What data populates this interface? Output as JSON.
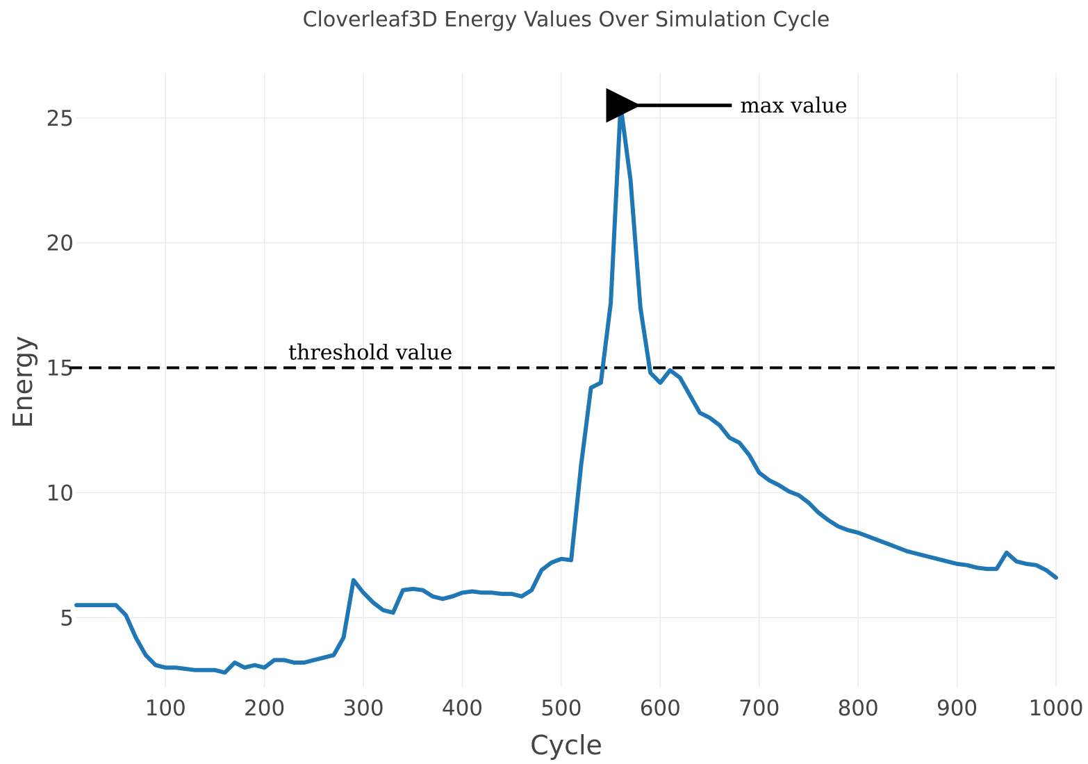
{
  "chart_data": {
    "type": "line",
    "title": "Cloverleaf3D Energy Values Over Simulation Cycle",
    "xlabel": "Cycle",
    "ylabel": "Energy",
    "xlim": [
      10,
      1000
    ],
    "ylim": [
      2.2,
      26.8
    ],
    "xticks": [
      100,
      200,
      300,
      400,
      500,
      600,
      700,
      800,
      900,
      1000
    ],
    "yticks": [
      5,
      10,
      15,
      20,
      25
    ],
    "grid": true,
    "legend": "none",
    "series": [
      {
        "color": "#1f77b4",
        "x": [
          10,
          20,
          30,
          40,
          50,
          60,
          70,
          80,
          90,
          100,
          110,
          120,
          130,
          140,
          150,
          160,
          170,
          180,
          190,
          200,
          210,
          220,
          230,
          240,
          250,
          260,
          270,
          280,
          290,
          300,
          310,
          320,
          330,
          340,
          350,
          360,
          370,
          380,
          390,
          400,
          410,
          420,
          430,
          440,
          450,
          460,
          470,
          480,
          490,
          500,
          510,
          520,
          530,
          540,
          550,
          560,
          570,
          580,
          590,
          600,
          610,
          620,
          630,
          640,
          650,
          660,
          670,
          680,
          690,
          700,
          710,
          720,
          730,
          740,
          750,
          760,
          770,
          780,
          790,
          800,
          810,
          820,
          830,
          840,
          850,
          860,
          870,
          880,
          890,
          900,
          910,
          920,
          930,
          940,
          950,
          960,
          970,
          980,
          990,
          1000
        ],
        "y": [
          5.5,
          5.5,
          5.5,
          5.5,
          5.5,
          5.1,
          4.2,
          3.5,
          3.1,
          3.0,
          3.0,
          2.95,
          2.9,
          2.9,
          2.9,
          2.8,
          3.2,
          3.0,
          3.1,
          3.0,
          3.3,
          3.3,
          3.2,
          3.2,
          3.3,
          3.4,
          3.5,
          4.2,
          6.5,
          6.0,
          5.6,
          5.3,
          5.2,
          6.1,
          6.15,
          6.1,
          5.85,
          5.75,
          5.85,
          6.0,
          6.05,
          6.0,
          6.0,
          5.95,
          5.95,
          5.85,
          6.1,
          6.9,
          7.2,
          7.35,
          7.3,
          11.1,
          14.2,
          14.4,
          17.6,
          25.5,
          22.5,
          17.4,
          14.8,
          14.4,
          14.9,
          14.6,
          13.9,
          13.2,
          13.0,
          12.7,
          12.2,
          12.0,
          11.5,
          10.8,
          10.5,
          10.3,
          10.05,
          9.9,
          9.6,
          9.2,
          8.9,
          8.65,
          8.5,
          8.4,
          8.25,
          8.1,
          7.95,
          7.8,
          7.65,
          7.55,
          7.45,
          7.35,
          7.25,
          7.15,
          7.1,
          7.0,
          6.95,
          6.95,
          7.6,
          7.25,
          7.15,
          7.1,
          6.9,
          6.6
        ]
      }
    ],
    "threshold": {
      "y": 15,
      "label": "threshold value"
    },
    "annotations": [
      {
        "text": "max value",
        "x": 560,
        "y": 25.5
      }
    ]
  }
}
